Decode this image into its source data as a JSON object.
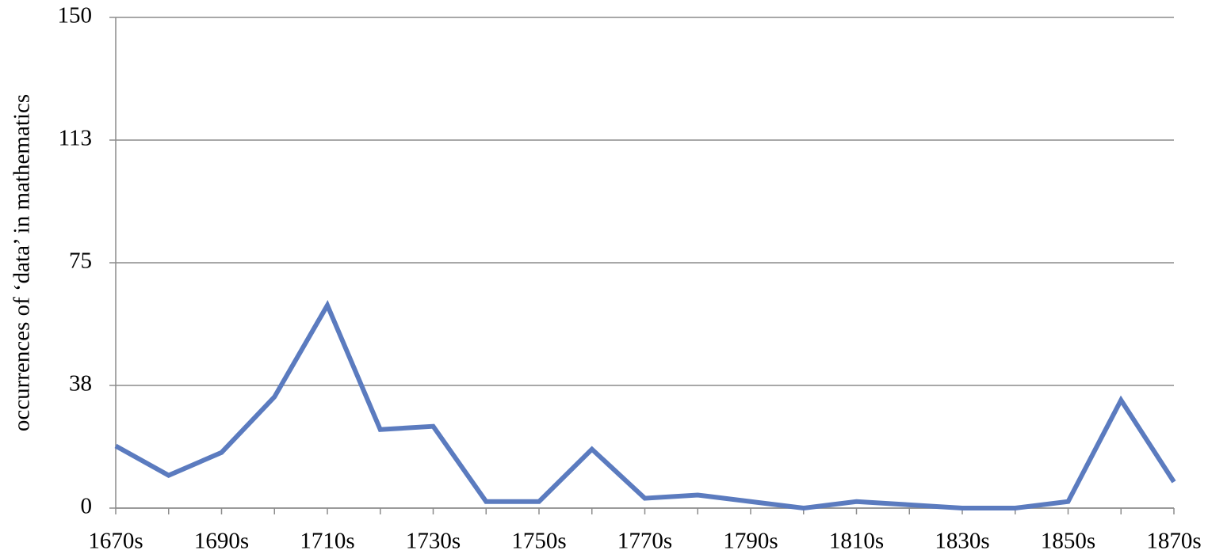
{
  "chart_data": {
    "type": "line",
    "y_label": "occurrences of ‘data’ in mathematics",
    "categories": [
      "1670s",
      null,
      "1690s",
      null,
      "1710s",
      null,
      "1730s",
      null,
      "1750s",
      null,
      "1770s",
      null,
      "1790s",
      null,
      "1810s",
      null,
      "1830s",
      null,
      "1850s",
      null,
      "1870s"
    ],
    "values": [
      19,
      10,
      17,
      34,
      62,
      24,
      25,
      2,
      2,
      18,
      3,
      4,
      2,
      0,
      2,
      1,
      0,
      0,
      2,
      33,
      8
    ],
    "color": "#5b7bbf",
    "ylim": [
      0,
      150
    ],
    "yticks": [
      0,
      {
        "value": 37.5,
        "label": "38"
      },
      75,
      {
        "value": 112.5,
        "label": "113"
      },
      150
    ],
    "grid": true
  }
}
